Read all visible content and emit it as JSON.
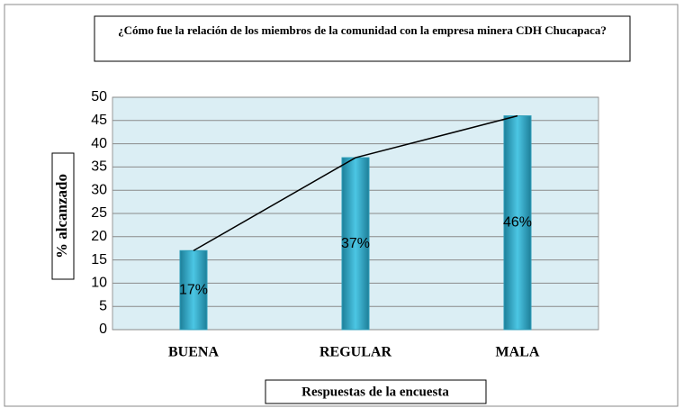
{
  "chart_data": {
    "type": "bar",
    "title": "¿Cómo fue  la relación de los miembros de la comunidad  con la empresa minera CDH Chucapaca?",
    "categories": [
      "BUENA",
      "REGULAR",
      "MALA"
    ],
    "values": [
      17,
      37,
      46
    ],
    "value_labels": [
      "17%",
      "37%",
      "46%"
    ],
    "color": "#31b0cf",
    "ylim": [
      0,
      50
    ],
    "yticks": [
      0,
      5,
      10,
      15,
      20,
      25,
      30,
      35,
      40,
      45,
      50
    ],
    "grid": true,
    "xlabel": "Respuestas de la encuesta",
    "ylabel": "%  alcanzado"
  }
}
